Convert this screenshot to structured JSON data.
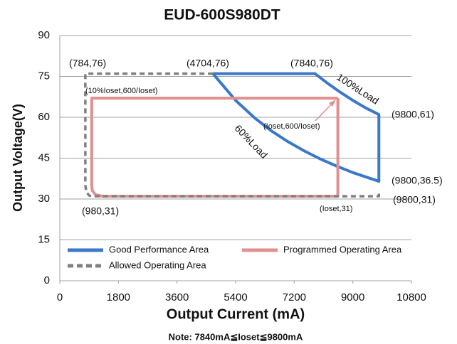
{
  "chart_data": {
    "type": "line",
    "title": "EUD-600S980DT",
    "x_label": "Output Current (mA)",
    "y_label": "Output Voltage(V)",
    "note": "Note:  7840mA≦Ioset≦9800mA",
    "xlim": [
      0,
      10800
    ],
    "xticks": [
      0,
      1800,
      3600,
      5400,
      7200,
      9000,
      10800
    ],
    "ylim": [
      0,
      90
    ],
    "yticks": [
      0,
      15,
      30,
      45,
      60,
      75,
      90
    ],
    "grid": true,
    "legend": "bottom",
    "series": [
      {
        "name": "Good Performance Area",
        "color": "#3a78c9",
        "dash": false,
        "x": [
          4704,
          7840,
          8200,
          8600,
          9000,
          9400,
          9800,
          9800,
          9400,
          9000,
          8500,
          8000,
          7500,
          7000,
          6500,
          6000,
          5400,
          4704
        ],
        "values": [
          76,
          76,
          72.7,
          69.3,
          66.2,
          63.4,
          61,
          36.5,
          38.1,
          39.7,
          42.1,
          44.7,
          47.7,
          51.1,
          55.0,
          59.6,
          66.2,
          76
        ]
      },
      {
        "name": "Programmed Operating Area",
        "color": "#e0908e",
        "dash": false,
        "x": [
          8540,
          980,
          980,
          1000,
          1100,
          1300,
          8540,
          8540
        ],
        "values": [
          67,
          67,
          35,
          33,
          31.6,
          31,
          31,
          67
        ]
      },
      {
        "name": "Allowed Operating Area",
        "color": "#808080",
        "dash": true,
        "x": [
          4704,
          784,
          784,
          820,
          900,
          980,
          9800,
          9800
        ],
        "values": [
          76,
          76,
          35,
          32.5,
          31.3,
          31,
          31,
          33
        ]
      }
    ],
    "annotations": [
      "(784,76)",
      "(4704,76)",
      "(7840,76)",
      "100%Load",
      "(9800,61)",
      "(10%Ioset,600/Ioset)",
      "(Ioset,600/Ioset)",
      "60%Load",
      "(9800,36.5)",
      "(980,31)",
      "(Ioset,31)",
      "(9800,31)"
    ]
  }
}
